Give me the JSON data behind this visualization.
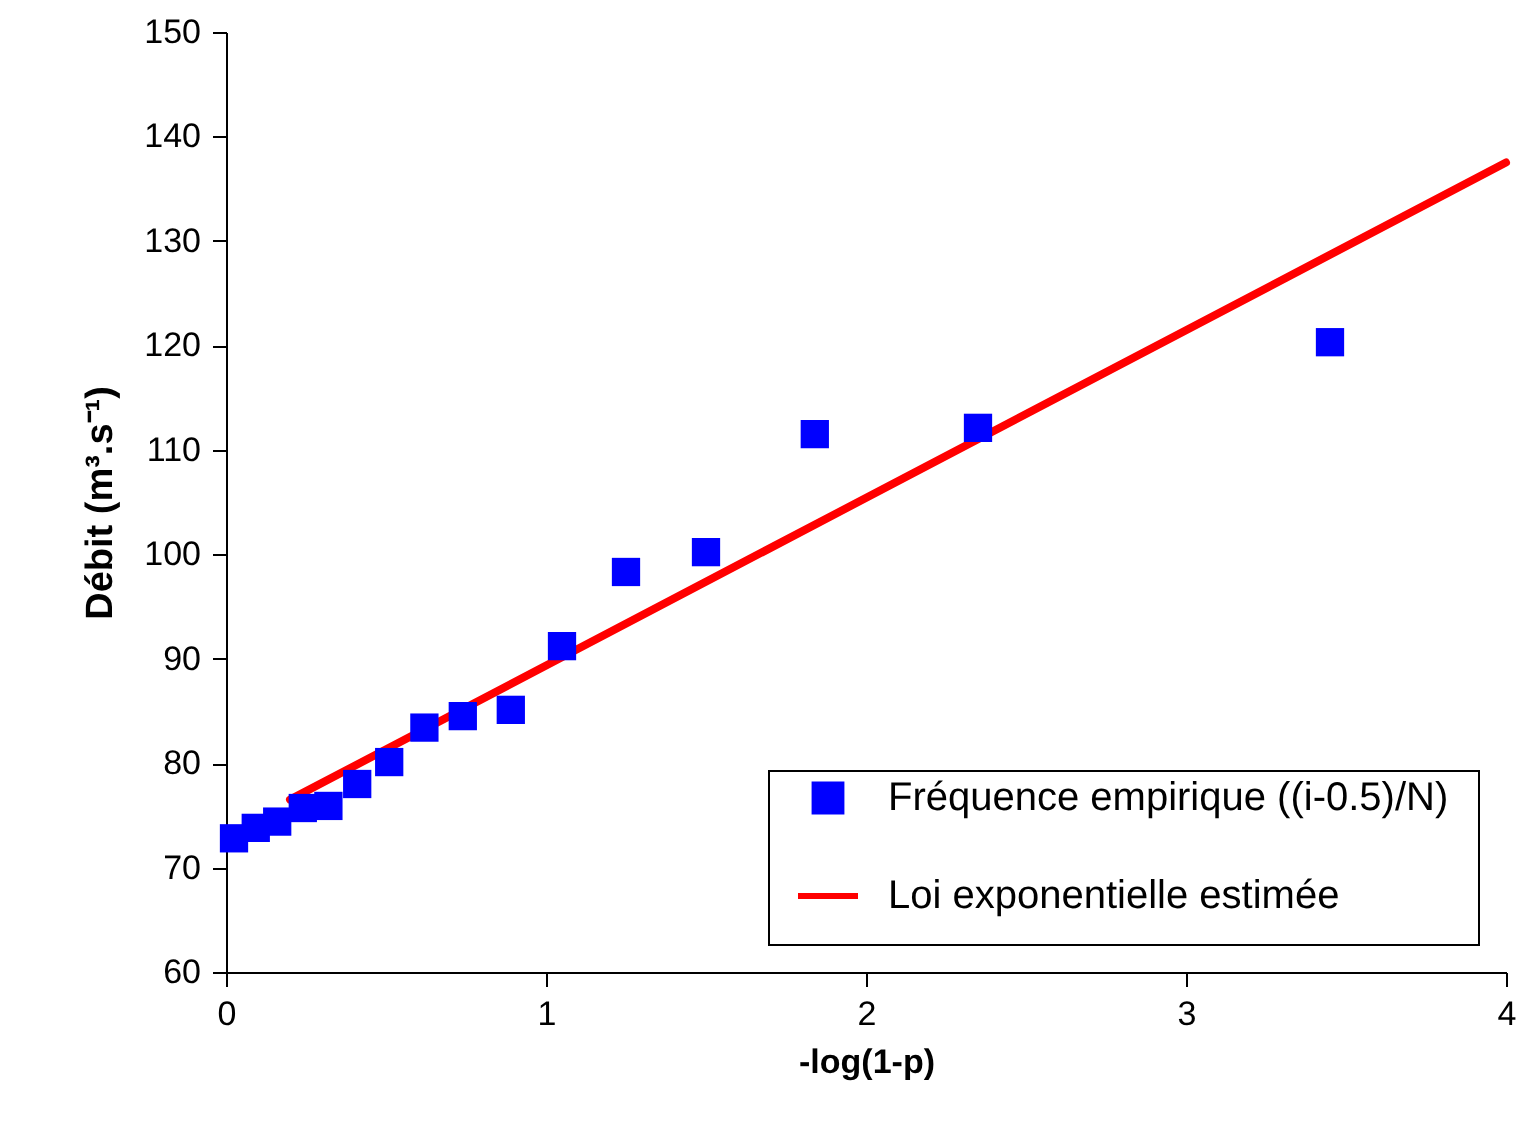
{
  "chart_data": {
    "type": "scatter",
    "xlabel": "-log(1-p)",
    "ylabel": "Débit (m³.s⁻¹)",
    "xlim": [
      0,
      4
    ],
    "xticks": [
      0,
      1,
      2,
      3,
      4
    ],
    "ylim": [
      60,
      150
    ],
    "yticks": [
      60,
      70,
      80,
      90,
      100,
      110,
      120,
      130,
      140,
      150
    ],
    "grid": false,
    "legend": "bottom right",
    "series": [
      {
        "name": "Fréquence empirique ((i-0.5)/N)",
        "color": "#0000ff",
        "marker": "square",
        "x": [
          0.025,
          0.093,
          0.16,
          0.24,
          0.32,
          0.41,
          0.51,
          0.62,
          0.74,
          0.89,
          1.05,
          1.25,
          1.5,
          1.84,
          2.35,
          3.45
        ],
        "values": [
          72.8,
          73.8,
          74.4,
          75.7,
          75.9,
          78.0,
          80.1,
          83.4,
          84.5,
          85.1,
          91.2,
          98.3,
          100.2,
          111.5,
          112.1,
          120.3
        ]
      },
      {
        "name": "Loi exponentielle estimée",
        "color": "#ff0000",
        "type": "line",
        "line_style": "solid",
        "x": [
          0.2,
          4
        ],
        "values": [
          76.5,
          137.5
        ]
      }
    ]
  }
}
